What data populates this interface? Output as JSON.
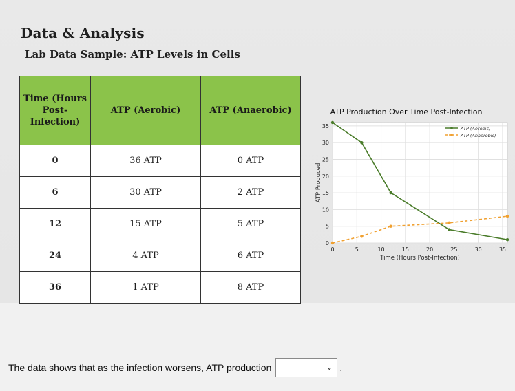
{
  "header": {
    "title": "Data & Analysis",
    "subtitle": "Lab Data Sample: ATP Levels in Cells"
  },
  "table": {
    "headers": [
      "Time (Hours Post-Infection)",
      "ATP (Aerobic)",
      "ATP (Anaerobic)"
    ],
    "rows": [
      [
        "0",
        "36 ATP",
        "0 ATP"
      ],
      [
        "6",
        "30 ATP",
        "2 ATP"
      ],
      [
        "12",
        "15 ATP",
        "5 ATP"
      ],
      [
        "24",
        "4 ATP",
        "6 ATP"
      ],
      [
        "36",
        "1 ATP",
        "8 ATP"
      ]
    ]
  },
  "chart_data": {
    "type": "line",
    "title": "ATP Production Over Time Post-Infection",
    "xlabel": "Time (Hours Post-Infection)",
    "ylabel": "ATP Produced",
    "xlim": [
      0,
      36
    ],
    "ylim": [
      0,
      36
    ],
    "xticks": [
      0,
      5,
      10,
      15,
      20,
      25,
      30,
      35
    ],
    "yticks": [
      0,
      5,
      10,
      15,
      20,
      25,
      30,
      35
    ],
    "grid": true,
    "legend": "top-right",
    "series": [
      {
        "name": "ATP (Aerobic)",
        "x": [
          0,
          6,
          12,
          24,
          36
        ],
        "values": [
          36,
          30,
          15,
          4,
          1
        ],
        "color": "#4a7c2a",
        "style": "solid"
      },
      {
        "name": "ATP (Anaerobic)",
        "x": [
          0,
          6,
          12,
          24,
          36
        ],
        "values": [
          0,
          2,
          5,
          6,
          8
        ],
        "color": "#f0a030",
        "style": "dashed"
      }
    ]
  },
  "question": {
    "text": "The data shows that as the infection worsens, ATP production",
    "selected": "",
    "chevron_icon": "chevron-down-icon",
    "end": "."
  }
}
